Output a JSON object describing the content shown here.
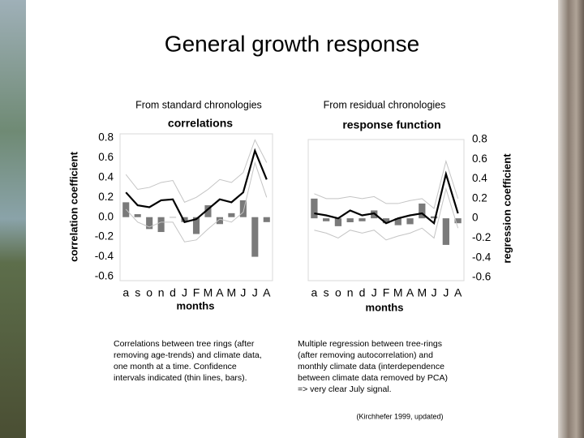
{
  "title": "General growth response",
  "captions": [
    [
      "Correlations between tree rings (after",
      "removing age-trends) and climate data,",
      "one month at a time. Confidence",
      "intervals indicated (thin lines, bars)."
    ],
    [
      "Multiple  regression between tree-rings",
      "(after removing autocorrelation) and",
      "monthly climate data (interdependence",
      "between climate data removed by PCA)",
      "=> very clear July signal."
    ]
  ],
  "citation": "(Kirchhefer 1999, updated)",
  "chart_data": [
    {
      "type": "line",
      "subtitle": "From standard chronologies",
      "title": "correlations",
      "xlabel": "months",
      "ylabel": "correlation coefficient",
      "yaxis_side": "left",
      "categories": [
        "a",
        "s",
        "o",
        "n",
        "d",
        "J",
        "F",
        "M",
        "A",
        "M",
        "J",
        "J",
        "A"
      ],
      "ylim": [
        -0.6,
        0.8
      ],
      "yticks": [
        -0.6,
        -0.4,
        -0.2,
        {
          "value": 0,
          "label": "0.0"
        },
        0.2,
        0.4,
        0.6,
        0.8
      ],
      "series": [
        {
          "kind": "bar",
          "color": "#7a7a7a",
          "values": [
            0.15,
            0.03,
            -0.12,
            -0.15,
            0,
            -0.05,
            -0.17,
            0.12,
            -0.07,
            0.04,
            0.17,
            -0.4,
            -0.05
          ]
        },
        {
          "kind": "line",
          "color": "#c4c4c4",
          "values": [
            0.43,
            0.28,
            0.3,
            0.35,
            0.37,
            0.15,
            0.2,
            0.28,
            0.38,
            0.35,
            0.45,
            0.78,
            0.55
          ]
        },
        {
          "kind": "line",
          "color": "#c4c4c4",
          "values": [
            0.08,
            -0.05,
            -0.1,
            -0.05,
            -0.05,
            -0.25,
            -0.23,
            -0.12,
            -0.02,
            -0.05,
            0.05,
            0.55,
            0.2
          ]
        },
        {
          "kind": "line",
          "color": "#000000",
          "values": [
            0.25,
            0.12,
            0.1,
            0.17,
            0.18,
            -0.05,
            -0.02,
            0.08,
            0.18,
            0.15,
            0.25,
            0.67,
            0.38
          ]
        }
      ]
    },
    {
      "type": "line",
      "subtitle": "From residual chronologies",
      "title": "response function",
      "xlabel": "months",
      "ylabel": "regression coefficient",
      "yaxis_side": "right",
      "categories": [
        "a",
        "s",
        "o",
        "n",
        "d",
        "J",
        "F",
        "M",
        "A",
        "M",
        "J",
        "J",
        "A"
      ],
      "ylim": [
        -0.6,
        0.8
      ],
      "yticks": [
        -0.6,
        -0.4,
        -0.2,
        0,
        0.2,
        0.4,
        0.6,
        0.8
      ],
      "series": [
        {
          "kind": "bar",
          "color": "#7a7a7a",
          "values": [
            0.2,
            -0.03,
            -0.08,
            -0.04,
            -0.03,
            0.08,
            -0.05,
            -0.07,
            -0.06,
            0.15,
            0.02,
            -0.27,
            -0.05
          ]
        },
        {
          "kind": "line",
          "color": "#c4c4c4",
          "values": [
            0.25,
            0.2,
            0.2,
            0.22,
            0.2,
            0.22,
            0.15,
            0.15,
            0.18,
            0.2,
            0.1,
            0.58,
            0.2
          ]
        },
        {
          "kind": "line",
          "color": "#c4c4c4",
          "values": [
            -0.12,
            -0.15,
            -0.2,
            -0.12,
            -0.15,
            -0.12,
            -0.22,
            -0.18,
            -0.15,
            -0.1,
            -0.2,
            0.3,
            -0.1
          ]
        },
        {
          "kind": "line",
          "color": "#000000",
          "values": [
            0.05,
            0.03,
            0,
            0.08,
            0.03,
            0.05,
            -0.05,
            0,
            0.03,
            0.05,
            -0.05,
            0.45,
            0.05
          ]
        }
      ]
    }
  ]
}
